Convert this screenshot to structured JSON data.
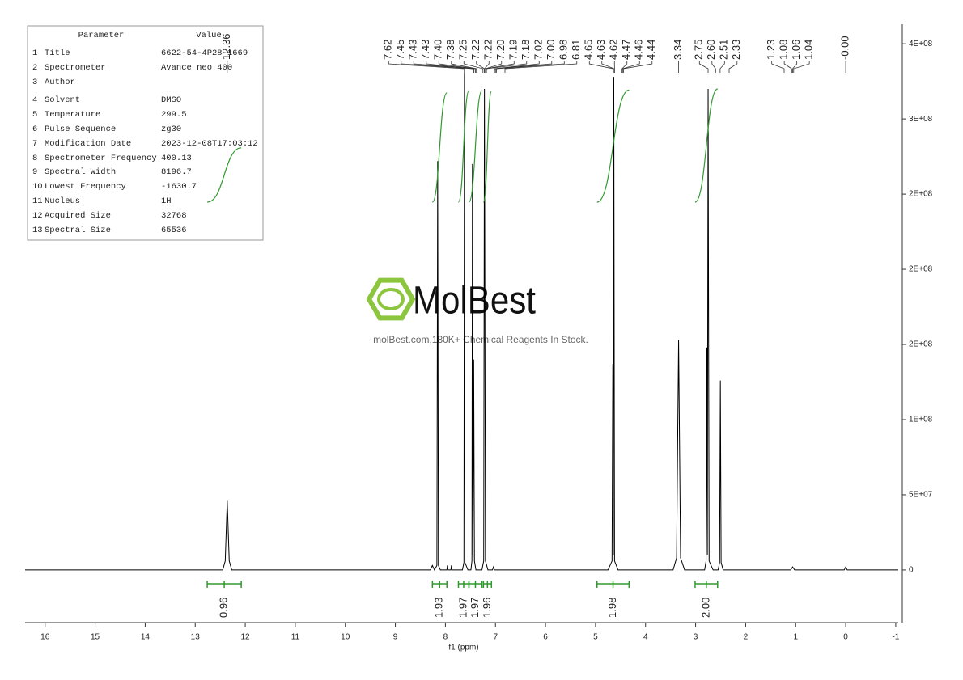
{
  "parameters": {
    "headers": [
      "Parameter",
      "Value"
    ],
    "rows": [
      [
        1,
        "Title",
        "6622-54-4P28-1669"
      ],
      [
        2,
        "Spectrometer",
        "Avance neo 400"
      ],
      [
        3,
        "Author"
      ],
      [
        4,
        "Solvent",
        "DMSO"
      ],
      [
        5,
        "Temperature",
        "299.5"
      ],
      [
        6,
        "Pulse Sequence",
        "zg30"
      ],
      [
        7,
        "Modification Date",
        "2023-12-08T17:03:12"
      ],
      [
        8,
        "Spectrometer Frequency",
        "400.13"
      ],
      [
        9,
        "Spectral Width",
        "8196.7"
      ],
      [
        10,
        "Lowest Frequency",
        "-1630.7"
      ],
      [
        11,
        "Nucleus",
        "1H"
      ],
      [
        12,
        "Acquired Size",
        "32768"
      ],
      [
        13,
        "Spectral Size",
        "65536"
      ]
    ]
  },
  "watermark": {
    "title": "MolBest",
    "subtitle": "molBest.com,180K+ Chemical Reagents In Stock."
  },
  "chart_data": {
    "type": "line",
    "color": "#000000",
    "integral_color": "#2e9a2e",
    "xlabel": "f1 (ppm)",
    "xlim": [
      16.4,
      -1.05
    ],
    "xticks": [
      16,
      15,
      14,
      13,
      12,
      11,
      10,
      9,
      8,
      7,
      6,
      5,
      4,
      3,
      2,
      1,
      0,
      -1
    ],
    "ylim": [
      -35000000,
      363000000
    ],
    "yticks": [
      0,
      {
        "value": 50000000,
        "label": "5E+07"
      },
      {
        "value": 100000000,
        "label": "1E+08"
      },
      {
        "value": 150000000,
        "label": "2E+08"
      },
      {
        "value": 200000000,
        "label": "2E+08"
      },
      {
        "value": 250000000,
        "label": "2E+08"
      },
      {
        "value": 300000000,
        "label": "3E+08"
      },
      {
        "value": 350000000,
        "label": "4E+08"
      }
    ],
    "x": [
      16.4,
      12.45,
      12.4,
      12.36,
      12.32,
      12.27,
      8.3,
      8.26,
      8.22,
      8.17,
      8.155,
      8.14,
      8.1,
      7.97,
      7.96,
      7.95,
      7.89,
      7.88,
      7.87,
      7.66,
      7.63,
      7.62,
      7.61,
      7.55,
      7.49,
      7.47,
      7.46,
      7.45,
      7.435,
      7.42,
      7.39,
      7.27,
      7.235,
      7.22,
      7.2,
      7.15,
      7.06,
      7.04,
      7.02,
      4.75,
      4.67,
      4.655,
      4.645,
      4.635,
      4.62,
      4.55,
      3.45,
      3.38,
      3.34,
      3.3,
      3.22,
      2.82,
      2.79,
      2.775,
      2.765,
      2.75,
      2.73,
      2.65,
      2.55,
      2.52,
      2.505,
      2.49,
      2.45,
      1.1,
      1.06,
      1.02,
      0.03,
      0,
      -0.03,
      -1.05
    ],
    "values": [
      0,
      0,
      6000000,
      46000000,
      6000000,
      0,
      0,
      3000000,
      0,
      3000000,
      272000000,
      3000000,
      0,
      0,
      3000000,
      0,
      0,
      3000000,
      0,
      0,
      5000000,
      333000000,
      5000000,
      0,
      0,
      6000000,
      270000000,
      10000000,
      140000000,
      6000000,
      0,
      0,
      6000000,
      320000000,
      6000000,
      0,
      0,
      2000000,
      0,
      0,
      6000000,
      137000000,
      10000000,
      328000000,
      6000000,
      0,
      0,
      8000000,
      153000000,
      8000000,
      0,
      0,
      6000000,
      148000000,
      10000000,
      320000000,
      6000000,
      0,
      0,
      5000000,
      126000000,
      5000000,
      0,
      0,
      2000000,
      0,
      0,
      2000000,
      0,
      0
    ],
    "peaks": [
      12.36,
      7.62,
      7.45,
      7.43,
      7.43,
      {
        "value": 7.4,
        "label": "7.40"
      },
      7.38,
      7.25,
      7.22,
      7.22,
      {
        "value": 7.2,
        "label": "7.20"
      },
      7.19,
      7.18,
      7.02,
      {
        "value": 7,
        "label": "7.00"
      },
      6.98,
      6.81,
      4.65,
      4.63,
      4.62,
      4.47,
      4.46,
      4.44,
      3.34,
      2.75,
      {
        "value": 2.6,
        "label": "2.60"
      },
      2.51,
      2.33,
      1.23,
      1.08,
      1.06,
      1.04,
      {
        "value": 0,
        "label": "-0.00"
      }
    ],
    "integrals": {
      "from": [
        12.76,
        8.26,
        7.74,
        7.53,
        7.24,
        4.97,
        3.01
      ],
      "to": [
        12.08,
        7.97,
        7.53,
        7.27,
        7.08,
        4.33,
        2.56
      ],
      "values": [
        0.96,
        1.93,
        1.97,
        1.97,
        1.96,
        1.98,
        2
      ],
      "value_labels": [
        "0.96",
        "1.93",
        "1.97",
        "1.97",
        "1.96",
        "1.98",
        "2.00"
      ]
    }
  }
}
